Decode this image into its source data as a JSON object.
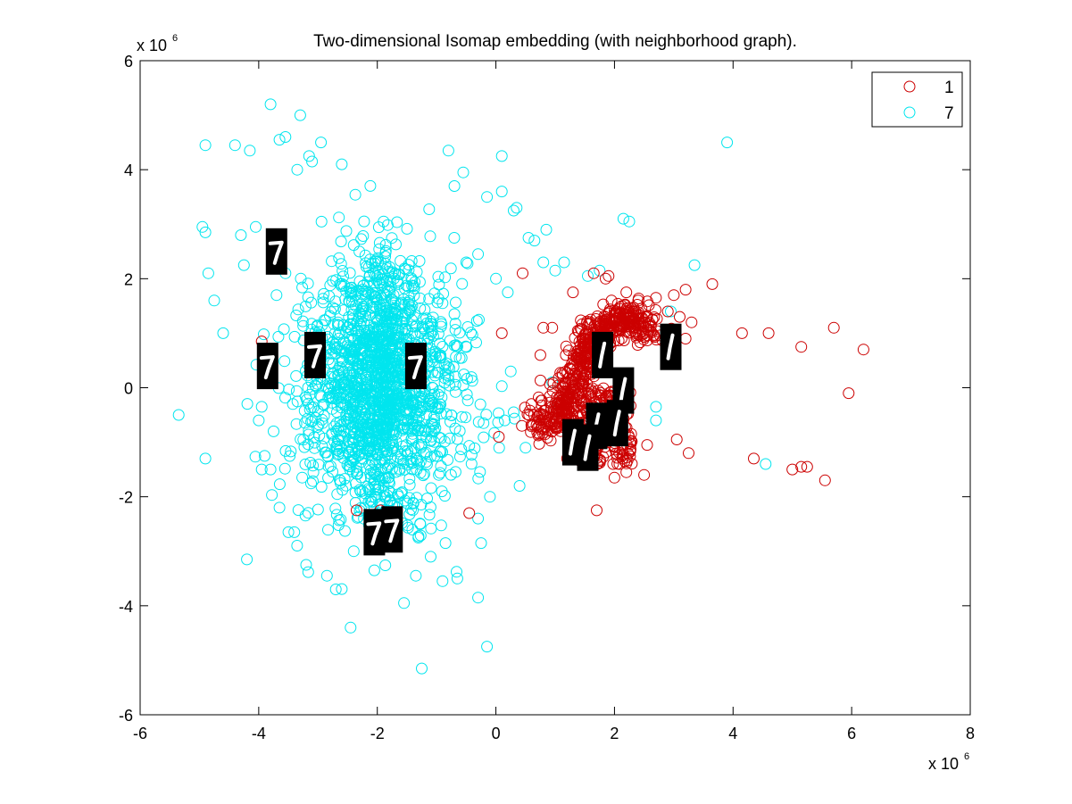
{
  "chart_data": {
    "type": "scatter",
    "title": "Two-dimensional Isomap embedding (with neighborhood graph).",
    "xlabel": "",
    "ylabel": "",
    "xlim": [
      -6,
      8
    ],
    "ylim": [
      -6,
      6
    ],
    "x_ticks": [
      -6,
      -4,
      -2,
      0,
      2,
      4,
      6,
      8
    ],
    "y_ticks": [
      -6,
      -4,
      -2,
      0,
      2,
      4,
      6
    ],
    "x_multiplier": {
      "base": "x 10",
      "exponent": "6"
    },
    "y_multiplier": {
      "base": "x 10",
      "exponent": "6"
    },
    "grid": false,
    "legend_position": "top-right",
    "series": [
      {
        "name": "1",
        "color": "#cc0000",
        "marker": "circle",
        "points": [
          [
            0.8,
            1.1
          ],
          [
            0.95,
            1.1
          ],
          [
            1.3,
            1.75
          ],
          [
            1.65,
            2.1
          ],
          [
            1.9,
            2.05
          ],
          [
            2.2,
            1.75
          ],
          [
            2.4,
            1.6
          ],
          [
            2.7,
            1.65
          ],
          [
            3.0,
            1.7
          ],
          [
            3.2,
            1.8
          ],
          [
            3.65,
            1.9
          ],
          [
            4.15,
            1.0
          ],
          [
            4.6,
            1.0
          ],
          [
            5.15,
            0.75
          ],
          [
            5.7,
            1.1
          ],
          [
            6.2,
            0.7
          ],
          [
            5.95,
            -0.1
          ],
          [
            4.35,
            -1.3
          ],
          [
            5.0,
            -1.5
          ],
          [
            5.15,
            -1.45
          ],
          [
            5.25,
            -1.45
          ],
          [
            5.55,
            -1.7
          ],
          [
            3.25,
            -1.2
          ],
          [
            3.05,
            -0.95
          ],
          [
            2.55,
            -1.05
          ],
          [
            2.5,
            -1.6
          ],
          [
            2.2,
            -1.55
          ],
          [
            2.0,
            -1.65
          ],
          [
            1.7,
            -2.25
          ],
          [
            1.2,
            -1.3
          ],
          [
            0.75,
            0.6
          ],
          [
            0.6,
            -0.3
          ],
          [
            0.45,
            2.1
          ],
          [
            2.9,
            1.4
          ],
          [
            3.1,
            1.3
          ],
          [
            3.3,
            1.2
          ],
          [
            2.95,
            0.85
          ],
          [
            3.2,
            0.9
          ],
          [
            1.85,
            2.0
          ],
          [
            1.95,
            1.6
          ],
          [
            2.35,
            1.4
          ],
          [
            2.55,
            1.3
          ],
          [
            0.05,
            -0.9
          ],
          [
            0.1,
            1.0
          ],
          [
            -1.95,
            -2.25
          ],
          [
            -1.7,
            -2.35
          ],
          [
            -2.35,
            -2.25
          ],
          [
            -0.45,
            -2.3
          ],
          [
            -3.95,
            0.85
          ]
        ],
        "dense_cluster": {
          "description": "densely packed points forming a band",
          "path": [
            [
              0.7,
              -0.7
            ],
            [
              1.0,
              -0.55
            ],
            [
              1.25,
              -0.2
            ],
            [
              1.4,
              0.3
            ],
            [
              1.55,
              0.75
            ],
            [
              1.75,
              1.05
            ],
            [
              2.0,
              1.2
            ],
            [
              2.3,
              1.25
            ],
            [
              2.6,
              1.15
            ]
          ],
          "spread_x": 0.28,
          "spread_y": 0.35,
          "count": 600,
          "extra_region": {
            "x_range": [
              1.4,
              2.3
            ],
            "y_range": [
              -1.4,
              0.0
            ],
            "count": 220
          }
        }
      },
      {
        "name": "7",
        "color": "#00e5ee",
        "marker": "circle",
        "points": [
          [
            -3.8,
            5.2
          ],
          [
            -3.3,
            5.0
          ],
          [
            -2.95,
            4.5
          ],
          [
            -3.15,
            4.25
          ],
          [
            -3.35,
            4.0
          ],
          [
            -3.65,
            4.55
          ],
          [
            -3.55,
            4.6
          ],
          [
            -4.9,
            4.45
          ],
          [
            -4.4,
            4.45
          ],
          [
            -4.15,
            4.35
          ],
          [
            -0.8,
            4.35
          ],
          [
            0.1,
            4.25
          ],
          [
            3.9,
            4.5
          ],
          [
            -3.1,
            4.15
          ],
          [
            -2.6,
            4.1
          ],
          [
            -4.95,
            2.95
          ],
          [
            -4.9,
            2.85
          ],
          [
            -4.3,
            2.8
          ],
          [
            -4.05,
            2.95
          ],
          [
            -4.25,
            2.25
          ],
          [
            -4.85,
            2.1
          ],
          [
            -4.75,
            1.6
          ],
          [
            -4.6,
            1.0
          ],
          [
            -5.35,
            -0.5
          ],
          [
            -4.9,
            -1.3
          ],
          [
            -4.2,
            -3.15
          ],
          [
            -2.45,
            -4.4
          ],
          [
            -1.55,
            -3.95
          ],
          [
            -1.25,
            -5.15
          ],
          [
            -0.15,
            -4.75
          ],
          [
            -0.3,
            -3.85
          ],
          [
            -0.65,
            -3.5
          ],
          [
            0.3,
            3.25
          ],
          [
            0.35,
            3.3
          ],
          [
            0.1,
            3.6
          ],
          [
            -0.15,
            3.5
          ],
          [
            -0.7,
            3.7
          ],
          [
            -0.55,
            3.95
          ],
          [
            0.55,
            2.75
          ],
          [
            0.65,
            2.7
          ],
          [
            0.8,
            2.3
          ],
          [
            0.85,
            2.9
          ],
          [
            1.0,
            2.15
          ],
          [
            1.15,
            2.3
          ],
          [
            1.55,
            2.05
          ],
          [
            1.75,
            2.15
          ],
          [
            2.15,
            3.1
          ],
          [
            2.25,
            3.05
          ],
          [
            2.95,
            1.4
          ],
          [
            3.35,
            2.25
          ],
          [
            2.7,
            -0.35
          ],
          [
            2.7,
            -0.6
          ],
          [
            4.55,
            -1.4
          ],
          [
            0.5,
            -1.1
          ],
          [
            0.4,
            -1.8
          ],
          [
            0.3,
            -0.45
          ],
          [
            0.15,
            -0.6
          ],
          [
            0.25,
            0.3
          ],
          [
            0.2,
            1.75
          ],
          [
            0.0,
            2.0
          ],
          [
            -0.3,
            -2.4
          ],
          [
            -0.1,
            -2.0
          ],
          [
            -0.25,
            -2.85
          ],
          [
            -0.85,
            -2.85
          ],
          [
            -0.9,
            -3.55
          ],
          [
            -1.1,
            -3.1
          ],
          [
            -1.35,
            -3.45
          ],
          [
            -2.05,
            -3.35
          ],
          [
            -2.7,
            -3.7
          ],
          [
            -2.85,
            -3.45
          ],
          [
            -3.2,
            -3.25
          ],
          [
            -3.4,
            -2.65
          ],
          [
            -3.5,
            -2.65
          ],
          [
            -3.65,
            -2.2
          ],
          [
            -3.8,
            -1.5
          ],
          [
            -3.9,
            -1.25
          ],
          [
            -3.95,
            -1.5
          ],
          [
            -4.0,
            -0.6
          ],
          [
            -3.95,
            -0.35
          ],
          [
            -3.9,
            0.25
          ],
          [
            -3.7,
            1.7
          ],
          [
            -3.55,
            2.1
          ],
          [
            -0.9,
            1.55
          ],
          [
            -0.7,
            1.35
          ],
          [
            -0.5,
            2.3
          ],
          [
            -0.3,
            2.45
          ],
          [
            0.95,
            0.1
          ],
          [
            1.05,
            -0.3
          ]
        ],
        "dense_cluster": {
          "description": "main diffuse cloud",
          "centers": [
            [
              -2.3,
              1.0
            ],
            [
              -2.0,
              0.0
            ],
            [
              -1.9,
              -1.2
            ],
            [
              -1.6,
              0.8
            ],
            [
              -2.6,
              -0.5
            ],
            [
              -1.2,
              -0.3
            ]
          ],
          "spread_x": 0.55,
          "spread_y": 0.85,
          "count": 1350,
          "core": {
            "center": [
              -2.0,
              0.3
            ],
            "spread_x": 0.25,
            "spread_y": 1.3,
            "count": 380
          }
        }
      }
    ],
    "digit_thumbnails": [
      {
        "label": "7",
        "x": -3.7,
        "y": 2.5
      },
      {
        "label": "7",
        "x": -3.05,
        "y": 0.6
      },
      {
        "label": "7",
        "x": -3.85,
        "y": 0.4
      },
      {
        "label": "7",
        "x": -1.35,
        "y": 0.4
      },
      {
        "label": "7",
        "x": -2.05,
        "y": -2.65
      },
      {
        "label": "7",
        "x": -1.75,
        "y": -2.6
      },
      {
        "label": "1",
        "x": 1.8,
        "y": 0.6
      },
      {
        "label": "1",
        "x": 2.95,
        "y": 0.75
      },
      {
        "label": "1",
        "x": 2.15,
        "y": -0.05
      },
      {
        "label": "1",
        "x": 2.05,
        "y": -0.65
      },
      {
        "label": "1",
        "x": 1.7,
        "y": -0.7
      },
      {
        "label": "1",
        "x": 1.3,
        "y": -1.0
      },
      {
        "label": "1",
        "x": 1.55,
        "y": -1.1
      }
    ]
  }
}
